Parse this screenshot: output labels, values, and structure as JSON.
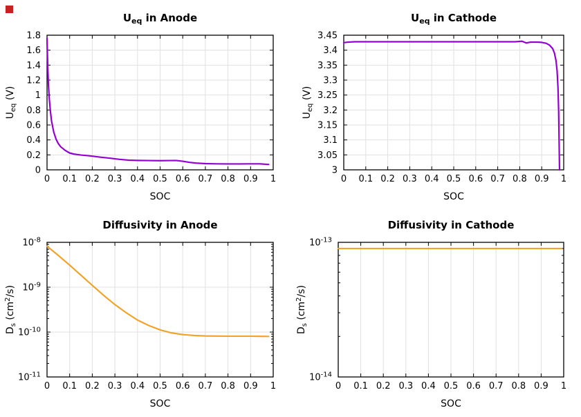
{
  "page": {
    "background": "#ffffff",
    "marker_color": "#c62222"
  },
  "chart_data": [
    {
      "id": "ueq-anode",
      "type": "line",
      "title": "U_eq in Anode",
      "title_segments": [
        {
          "t": "U"
        },
        {
          "t": "eq",
          "mode": "sub"
        },
        {
          "t": " in Anode"
        }
      ],
      "xlabel": "SOC",
      "ylabel": "U_eq (V)",
      "ylabel_segments": [
        {
          "t": "U"
        },
        {
          "t": "eq",
          "mode": "sub"
        },
        {
          "t": " (V)"
        }
      ],
      "color": "#9400d3",
      "grid": true,
      "x": {
        "min": 0,
        "max": 1,
        "ticks": [
          0,
          0.1,
          0.2,
          0.3,
          0.4,
          0.5,
          0.6,
          0.7,
          0.8,
          0.9,
          1
        ],
        "tick_labels": [
          "0",
          "0.1",
          "0.2",
          "0.3",
          "0.4",
          "0.5",
          "0.6",
          "0.7",
          "0.8",
          "0.9",
          "1"
        ]
      },
      "y": {
        "scale": "linear",
        "min": 0,
        "max": 1.8,
        "ticks": [
          0,
          0.2,
          0.4,
          0.6,
          0.8,
          1,
          1.2,
          1.4,
          1.6,
          1.8
        ],
        "tick_labels": [
          "0",
          "0.2",
          "0.4",
          "0.6",
          "0.8",
          "1",
          "1.2",
          "1.4",
          "1.6",
          "1.8"
        ]
      },
      "series": {
        "x": [
          0,
          0.003,
          0.006,
          0.01,
          0.015,
          0.02,
          0.03,
          0.04,
          0.05,
          0.06,
          0.08,
          0.1,
          0.12,
          0.15,
          0.18,
          0.2,
          0.24,
          0.28,
          0.32,
          0.36,
          0.4,
          0.45,
          0.5,
          0.54,
          0.57,
          0.6,
          0.63,
          0.66,
          0.7,
          0.75,
          0.8,
          0.85,
          0.9,
          0.94,
          0.98
        ],
        "y": [
          1.76,
          1.4,
          1.15,
          0.95,
          0.78,
          0.65,
          0.5,
          0.41,
          0.35,
          0.31,
          0.26,
          0.225,
          0.21,
          0.198,
          0.19,
          0.183,
          0.168,
          0.155,
          0.14,
          0.13,
          0.126,
          0.124,
          0.122,
          0.124,
          0.125,
          0.115,
          0.1,
          0.09,
          0.083,
          0.08,
          0.079,
          0.079,
          0.08,
          0.08,
          0.072
        ]
      }
    },
    {
      "id": "ueq-cathode",
      "type": "line",
      "title": "U_eq in Cathode",
      "title_segments": [
        {
          "t": "U"
        },
        {
          "t": "eq",
          "mode": "sub"
        },
        {
          "t": " in Cathode"
        }
      ],
      "xlabel": "SOC",
      "ylabel": "U_eq (V)",
      "ylabel_segments": [
        {
          "t": "U"
        },
        {
          "t": "eq",
          "mode": "sub"
        },
        {
          "t": " (V)"
        }
      ],
      "color": "#9400d3",
      "grid": true,
      "x": {
        "min": 0,
        "max": 1,
        "ticks": [
          0,
          0.1,
          0.2,
          0.3,
          0.4,
          0.5,
          0.6,
          0.7,
          0.8,
          0.9,
          1
        ],
        "tick_labels": [
          "0",
          "0.1",
          "0.2",
          "0.3",
          "0.4",
          "0.5",
          "0.6",
          "0.7",
          "0.8",
          "0.9",
          "1"
        ]
      },
      "y": {
        "scale": "linear",
        "min": 3,
        "max": 3.45,
        "ticks": [
          3,
          3.05,
          3.1,
          3.15,
          3.2,
          3.25,
          3.3,
          3.35,
          3.4,
          3.45
        ],
        "tick_labels": [
          "3",
          "3.05",
          "3.1",
          "3.15",
          "3.2",
          "3.25",
          "3.3",
          "3.35",
          "3.4",
          "3.45"
        ]
      },
      "series": {
        "x": [
          0,
          0.02,
          0.05,
          0.1,
          0.2,
          0.3,
          0.4,
          0.5,
          0.6,
          0.7,
          0.78,
          0.81,
          0.83,
          0.85,
          0.88,
          0.9,
          0.92,
          0.935,
          0.95,
          0.958,
          0.965,
          0.97,
          0.974,
          0.977,
          0.979,
          0.981
        ],
        "y": [
          3.425,
          3.427,
          3.428,
          3.428,
          3.428,
          3.428,
          3.428,
          3.428,
          3.428,
          3.428,
          3.428,
          3.43,
          3.424,
          3.427,
          3.427,
          3.426,
          3.423,
          3.417,
          3.405,
          3.39,
          3.365,
          3.33,
          3.275,
          3.195,
          3.1,
          3.0
        ]
      }
    },
    {
      "id": "diffusivity-anode",
      "type": "line",
      "title": "Diffusivity in Anode",
      "title_segments": [
        {
          "t": "Diffusivity in Anode"
        }
      ],
      "xlabel": "SOC",
      "ylabel": "D_s (cm^2/s)",
      "ylabel_segments": [
        {
          "t": "D"
        },
        {
          "t": "s",
          "mode": "sub"
        },
        {
          "t": " (cm"
        },
        {
          "t": "2",
          "mode": "sup"
        },
        {
          "t": "/s)"
        }
      ],
      "color": "#f1a32a",
      "grid": true,
      "x": {
        "min": 0,
        "max": 1,
        "ticks": [
          0,
          0.1,
          0.2,
          0.3,
          0.4,
          0.5,
          0.6,
          0.7,
          0.8,
          0.9,
          1
        ],
        "tick_labels": [
          "0",
          "0.1",
          "0.2",
          "0.3",
          "0.4",
          "0.5",
          "0.6",
          "0.7",
          "0.8",
          "0.9",
          "1"
        ]
      },
      "y": {
        "scale": "log",
        "min": 1e-11,
        "max": 1e-08,
        "ticks": [
          1e-11,
          1e-10,
          1e-09,
          1e-08
        ],
        "tick_labels": [
          "10^{-11}",
          "10^{-10}",
          "10^{-9}",
          "10^{-8}"
        ]
      },
      "series": {
        "x": [
          0,
          0.05,
          0.1,
          0.15,
          0.2,
          0.25,
          0.3,
          0.35,
          0.4,
          0.45,
          0.5,
          0.55,
          0.6,
          0.65,
          0.7,
          0.8,
          0.9,
          0.98
        ],
        "y": [
          8.2e-09,
          5.1e-09,
          3.1e-09,
          1.85e-09,
          1.1e-09,
          6.6e-10,
          4.1e-10,
          2.7e-10,
          1.85e-10,
          1.4e-10,
          1.12e-10,
          9.6e-11,
          8.8e-11,
          8.4e-11,
          8.2e-11,
          8.1e-11,
          8.1e-11,
          8e-11
        ]
      }
    },
    {
      "id": "diffusivity-cathode",
      "type": "line",
      "title": "Diffusivity in Cathode",
      "title_segments": [
        {
          "t": "Diffusivity in Cathode"
        }
      ],
      "xlabel": "SOC",
      "ylabel": "D_s (cm^2/s)",
      "ylabel_segments": [
        {
          "t": "D"
        },
        {
          "t": "s",
          "mode": "sub"
        },
        {
          "t": " (cm"
        },
        {
          "t": "2",
          "mode": "sup"
        },
        {
          "t": "/s)"
        }
      ],
      "color": "#f1a32a",
      "grid": true,
      "x": {
        "min": 0,
        "max": 1,
        "ticks": [
          0,
          0.1,
          0.2,
          0.3,
          0.4,
          0.5,
          0.6,
          0.7,
          0.8,
          0.9,
          1
        ],
        "tick_labels": [
          "0",
          "0.1",
          "0.2",
          "0.3",
          "0.4",
          "0.5",
          "0.6",
          "0.7",
          "0.8",
          "0.9",
          "1"
        ]
      },
      "y": {
        "scale": "log",
        "min": 1e-14,
        "max": 1e-13,
        "ticks": [
          1e-14,
          1e-13
        ],
        "tick_labels": [
          "10^{-14}",
          "10^{-13}"
        ]
      },
      "series": {
        "x": [
          0,
          0.99
        ],
        "y": [
          9e-14,
          9e-14
        ]
      }
    }
  ]
}
